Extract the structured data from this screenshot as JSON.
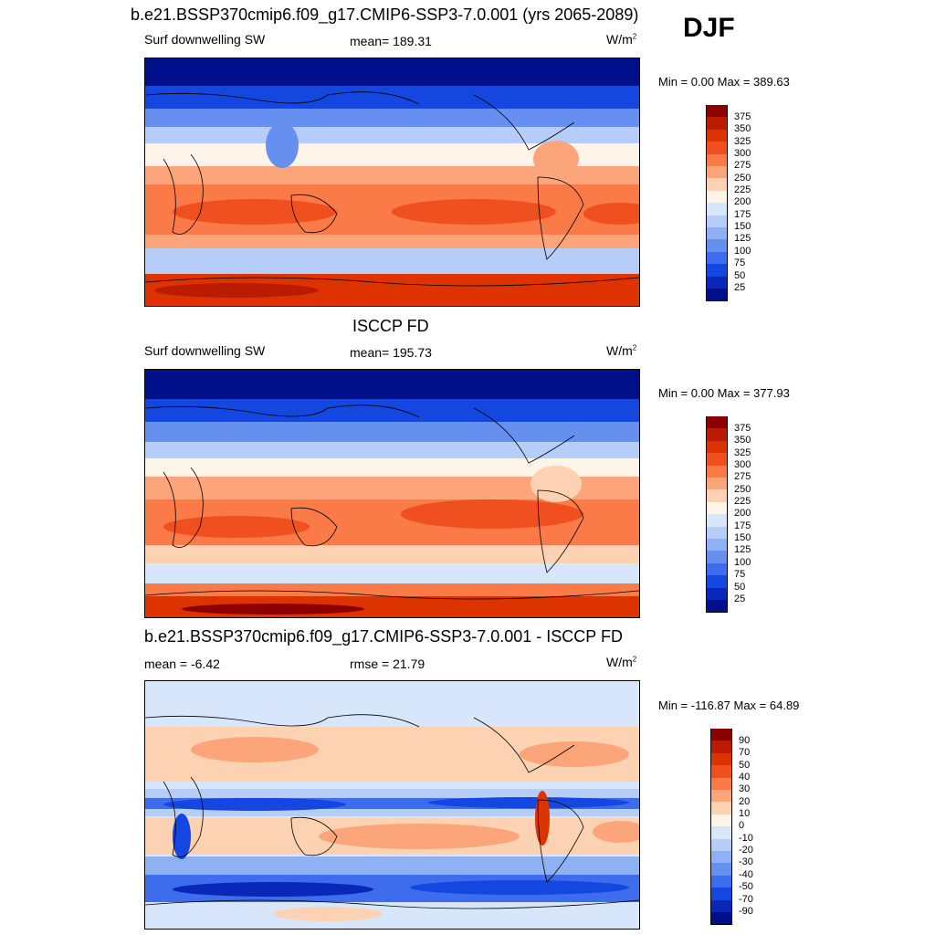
{
  "season": "DJF",
  "panel1": {
    "title": "b.e21.BSSP370cmip6.f09_g17.CMIP6-SSP3-7.0.001 (yrs 2065-2089)",
    "left": "Surf downwelling SW",
    "center": "mean= 189.31",
    "units": "W/m",
    "units_sup": "2",
    "minmax": "Min =   0.00 Max = 389.63"
  },
  "panel2": {
    "title": "ISCCP FD",
    "left": "Surf downwelling SW",
    "center": "mean= 195.73",
    "units": "W/m",
    "units_sup": "2",
    "minmax": "Min =   0.00 Max = 377.93"
  },
  "panel3": {
    "title": "b.e21.BSSP370cmip6.f09_g17.CMIP6-SSP3-7.0.001 - ISCCP FD",
    "left": "mean =  -6.42",
    "center": "rmse =  21.79",
    "units": "W/m",
    "units_sup": "2",
    "minmax": "Min = -116.87 Max =  64.89"
  },
  "colorbar_abs": {
    "labels": [
      "375",
      "350",
      "325",
      "300",
      "275",
      "250",
      "225",
      "200",
      "175",
      "150",
      "125",
      "100",
      "75",
      "50",
      "25"
    ],
    "colors": [
      "#8c0000",
      "#bb1b00",
      "#dd3300",
      "#f05020",
      "#fa7a48",
      "#fca57a",
      "#fdd2b2",
      "#fff4e8",
      "#d8e6fb",
      "#b6cdf8",
      "#8eb0f4",
      "#6690f0",
      "#3d6cec",
      "#1446e0",
      "#0a28b8",
      "#00108a"
    ]
  },
  "colorbar_diff": {
    "labels": [
      "90",
      "70",
      "50",
      "40",
      "30",
      "20",
      "10",
      "0",
      "-10",
      "-20",
      "-30",
      "-40",
      "-50",
      "-70",
      "-90"
    ],
    "colors": [
      "#8c0000",
      "#bb1b00",
      "#dd3300",
      "#f05020",
      "#fa7a48",
      "#fca57a",
      "#fdd2b2",
      "#fff4e8",
      "#d8e6fb",
      "#b6cdf8",
      "#8eb0f4",
      "#6690f0",
      "#3d6cec",
      "#1446e0",
      "#0a28b8",
      "#00108a"
    ]
  }
}
